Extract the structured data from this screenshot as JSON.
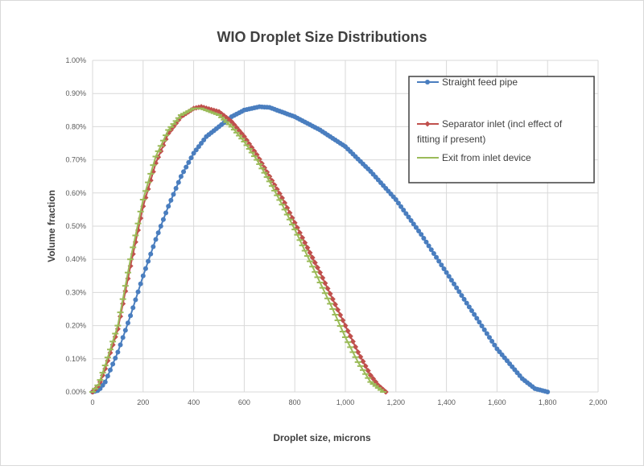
{
  "chart_data": {
    "type": "line",
    "title": "WIO Droplet Size Distributions",
    "xlabel": "Droplet size, microns",
    "ylabel": "Volume fraction",
    "xlim": [
      0,
      2000
    ],
    "ylim": [
      0,
      1.0
    ],
    "xticks": [
      0,
      200,
      400,
      600,
      800,
      1000,
      1200,
      1400,
      1600,
      1800,
      2000
    ],
    "xtick_labels": [
      "0",
      "200",
      "400",
      "600",
      "800",
      "1,000",
      "1,200",
      "1,400",
      "1,600",
      "1,800",
      "2,000"
    ],
    "yticks": [
      0,
      0.1,
      0.2,
      0.3,
      0.4,
      0.5,
      0.6,
      0.7,
      0.8,
      0.9,
      1.0
    ],
    "ytick_labels": [
      "0.00%",
      "0.10%",
      "0.20%",
      "0.30%",
      "0.40%",
      "0.50%",
      "0.60%",
      "0.70%",
      "0.80%",
      "0.90%",
      "1.00%"
    ],
    "grid": true,
    "legend_position": "top-right",
    "series": [
      {
        "name": "Straight feed pipe",
        "color": "#4a7ebf",
        "marker": "circle",
        "x": [
          0,
          25,
          50,
          100,
          150,
          200,
          250,
          300,
          350,
          400,
          450,
          500,
          550,
          600,
          660,
          700,
          800,
          900,
          1000,
          1100,
          1200,
          1300,
          1400,
          1500,
          1600,
          1700,
          1750,
          1800
        ],
        "y": [
          0,
          0.005,
          0.03,
          0.12,
          0.23,
          0.35,
          0.46,
          0.56,
          0.65,
          0.72,
          0.77,
          0.8,
          0.83,
          0.85,
          0.86,
          0.858,
          0.83,
          0.79,
          0.74,
          0.665,
          0.58,
          0.475,
          0.36,
          0.245,
          0.13,
          0.04,
          0.01,
          0
        ]
      },
      {
        "name": "Separator inlet (incl effect of fitting if present)",
        "color": "#c0504d",
        "marker": "diamond",
        "x": [
          0,
          25,
          50,
          100,
          150,
          200,
          250,
          300,
          350,
          400,
          430,
          500,
          550,
          600,
          650,
          700,
          750,
          800,
          850,
          900,
          950,
          1000,
          1050,
          1100,
          1130,
          1160
        ],
        "y": [
          0,
          0.02,
          0.07,
          0.19,
          0.38,
          0.56,
          0.69,
          0.78,
          0.83,
          0.855,
          0.86,
          0.845,
          0.815,
          0.77,
          0.715,
          0.65,
          0.585,
          0.51,
          0.435,
          0.36,
          0.28,
          0.2,
          0.12,
          0.05,
          0.02,
          0
        ]
      },
      {
        "name": "Exit from inlet device",
        "color": "#9bbb59",
        "marker": "triangle",
        "x": [
          0,
          25,
          50,
          100,
          150,
          200,
          250,
          300,
          350,
          400,
          430,
          500,
          550,
          600,
          650,
          700,
          750,
          800,
          850,
          900,
          950,
          1000,
          1050,
          1100,
          1150
        ],
        "y": [
          0,
          0.025,
          0.08,
          0.2,
          0.4,
          0.58,
          0.71,
          0.79,
          0.835,
          0.855,
          0.855,
          0.835,
          0.8,
          0.755,
          0.7,
          0.635,
          0.565,
          0.49,
          0.41,
          0.33,
          0.25,
          0.165,
          0.09,
          0.03,
          0
        ]
      }
    ]
  }
}
